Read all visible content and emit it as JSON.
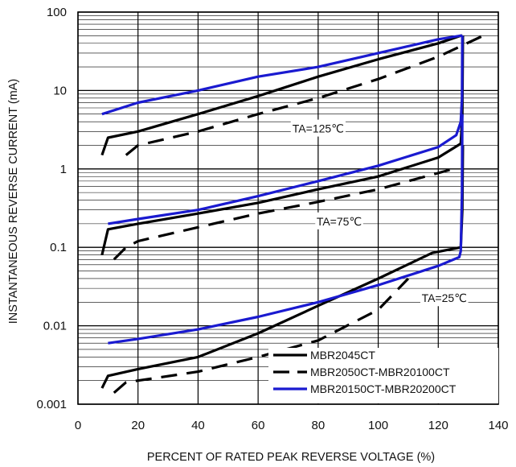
{
  "chart_data": {
    "type": "line",
    "title": "",
    "xlabel": "PERCENT OF RATED PEAK REVERSE VOLTAGE (%)",
    "ylabel": "INSTANTANEOUS REVERSE CURRENT (mA)",
    "xlim": [
      0,
      140
    ],
    "ylim": [
      0.001,
      100
    ],
    "yscale": "log",
    "x_ticks": [
      "0",
      "20",
      "40",
      "60",
      "80",
      "100",
      "120",
      "140"
    ],
    "y_ticks": [
      "0.001",
      "0.01",
      "0.1",
      "1",
      "10",
      "100"
    ],
    "grid": true,
    "legend_position": "bottom-right",
    "annotations": [
      {
        "text": "TA=125℃",
        "x": 80,
        "y": 3.2
      },
      {
        "text": "TA=75℃",
        "x": 87,
        "y": 0.21
      },
      {
        "text": "TA=25℃",
        "x": 122,
        "y": 0.022
      }
    ],
    "colors": {
      "MBR2045CT": "#000000",
      "MBR2050CT-MBR20100CT": "#000000",
      "MBR20150CT-MBR20200CT": "#1a1ad0"
    },
    "series": [
      {
        "name": "MBR2045CT",
        "style": "solid",
        "curves": [
          {
            "label": "TA=125℃",
            "x": [
              8,
              10,
              20,
              40,
              60,
              80,
              100,
              120,
              127.5,
              128
            ],
            "y": [
              1.5,
              2.5,
              3,
              5,
              8.5,
              15,
              25,
              40,
              50,
              50
            ]
          },
          {
            "label": "TA=75℃",
            "x": [
              8,
              10,
              20,
              40,
              60,
              80,
              100,
              120,
              127.5,
              128,
              128.2
            ],
            "y": [
              0.08,
              0.17,
              0.2,
              0.27,
              0.37,
              0.55,
              0.8,
              1.4,
              2.1,
              5,
              50
            ]
          },
          {
            "label": "TA=25℃",
            "x": [
              8,
              10,
              20,
              40,
              60,
              80,
              100,
              118,
              127.5,
              128,
              128.2
            ],
            "y": [
              0.0016,
              0.0023,
              0.0028,
              0.004,
              0.008,
              0.018,
              0.04,
              0.085,
              0.1,
              0.3,
              2
            ]
          }
        ]
      },
      {
        "name": "MBR2050CT-MBR20100CT",
        "style": "dashed",
        "curves": [
          {
            "label": "TA=125℃",
            "x": [
              16,
              20,
              40,
              60,
              80,
              100,
              120,
              135
            ],
            "y": [
              1.5,
              2,
              3,
              5,
              8,
              14,
              27,
              50
            ]
          },
          {
            "label": "TA=75℃",
            "x": [
              12,
              16,
              20,
              40,
              60,
              80,
              100,
              125
            ],
            "y": [
              0.07,
              0.1,
              0.12,
              0.18,
              0.27,
              0.38,
              0.55,
              1
            ]
          },
          {
            "label": "TA=25℃",
            "x": [
              12,
              16,
              20,
              40,
              60,
              80,
              100,
              110
            ],
            "y": [
              0.0014,
              0.0019,
              0.002,
              0.0026,
              0.004,
              0.0065,
              0.016,
              0.04
            ]
          }
        ]
      },
      {
        "name": "MBR20150CT-MBR20200CT",
        "style": "solid",
        "curves": [
          {
            "label": "TA=125℃",
            "x": [
              8,
              20,
              40,
              60,
              80,
              100,
              120,
              127.5,
              128
            ],
            "y": [
              5,
              7,
              10,
              15,
              20,
              30,
              45,
              50,
              50
            ]
          },
          {
            "label": "TA=75℃",
            "x": [
              10,
              20,
              40,
              60,
              80,
              100,
              120,
              126,
              127.5,
              127.9,
              128
            ],
            "y": [
              0.2,
              0.23,
              0.3,
              0.45,
              0.7,
              1.1,
              1.9,
              2.7,
              4,
              8,
              50
            ]
          },
          {
            "label": "TA=25℃",
            "x": [
              10,
              20,
              40,
              60,
              80,
              100,
              120,
              127,
              127.5,
              127.9,
              128
            ],
            "y": [
              0.006,
              0.0068,
              0.009,
              0.013,
              0.02,
              0.033,
              0.058,
              0.075,
              0.09,
              0.5,
              5
            ]
          }
        ]
      }
    ]
  }
}
